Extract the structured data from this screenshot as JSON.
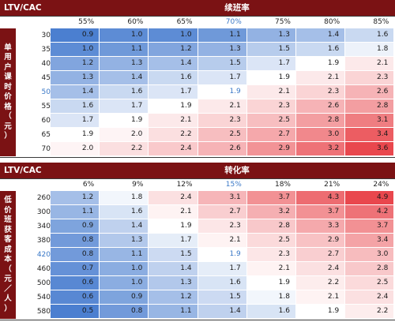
{
  "table1": {
    "corner": "LTV/CAC",
    "title": "续班率",
    "side_label": [
      "单",
      "用",
      "户",
      "课",
      "时",
      "价",
      "格",
      "（",
      "元",
      "）"
    ],
    "columns": [
      "55%",
      "60%",
      "65%",
      "70%",
      "75%",
      "80%",
      "85%"
    ],
    "highlight_col": 3,
    "rows": [
      "30",
      "35",
      "40",
      "45",
      "50",
      "55",
      "60",
      "65",
      "70"
    ],
    "highlight_row": 4,
    "values": [
      [
        "0.9",
        "1.0",
        "1.0",
        "1.1",
        "1.3",
        "1.4",
        "1.6"
      ],
      [
        "1.0",
        "1.1",
        "1.2",
        "1.3",
        "1.5",
        "1.6",
        "1.8"
      ],
      [
        "1.2",
        "1.3",
        "1.4",
        "1.5",
        "1.7",
        "1.9",
        "2.1"
      ],
      [
        "1.3",
        "1.4",
        "1.6",
        "1.7",
        "1.9",
        "2.1",
        "2.3"
      ],
      [
        "1.4",
        "1.6",
        "1.7",
        "1.9",
        "2.1",
        "2.3",
        "2.6"
      ],
      [
        "1.6",
        "1.7",
        "1.9",
        "2.1",
        "2.3",
        "2.6",
        "2.8"
      ],
      [
        "1.7",
        "1.9",
        "2.1",
        "2.3",
        "2.5",
        "2.8",
        "3.1"
      ],
      [
        "1.9",
        "2.0",
        "2.2",
        "2.5",
        "2.7",
        "3.0",
        "3.4"
      ],
      [
        "2.0",
        "2.2",
        "2.4",
        "2.6",
        "2.9",
        "3.2",
        "3.6"
      ]
    ]
  },
  "table2": {
    "corner": "LTV/CAC",
    "title": "转化率",
    "side_label": [
      "低",
      "价",
      "班",
      "获",
      "客",
      "成",
      "本",
      "（",
      "元",
      "／",
      "人",
      "）"
    ],
    "columns": [
      "6%",
      "9%",
      "12%",
      "15%",
      "18%",
      "21%",
      "24%"
    ],
    "highlight_col": 3,
    "rows": [
      "260",
      "300",
      "340",
      "380",
      "420",
      "460",
      "500",
      "540",
      "580"
    ],
    "highlight_row": 4,
    "values": [
      [
        "1.2",
        "1.8",
        "2.4",
        "3.1",
        "3.7",
        "4.3",
        "4.9"
      ],
      [
        "1.1",
        "1.6",
        "2.1",
        "2.7",
        "3.2",
        "3.7",
        "4.2"
      ],
      [
        "0.9",
        "1.4",
        "1.9",
        "2.3",
        "2.8",
        "3.3",
        "3.7"
      ],
      [
        "0.8",
        "1.3",
        "1.7",
        "2.1",
        "2.5",
        "2.9",
        "3.4"
      ],
      [
        "0.8",
        "1.1",
        "1.5",
        "1.9",
        "2.3",
        "2.7",
        "3.0"
      ],
      [
        "0.7",
        "1.0",
        "1.4",
        "1.7",
        "2.1",
        "2.4",
        "2.8"
      ],
      [
        "0.6",
        "1.0",
        "1.3",
        "1.6",
        "1.9",
        "2.2",
        "2.5"
      ],
      [
        "0.6",
        "0.9",
        "1.2",
        "1.5",
        "1.8",
        "2.1",
        "2.4"
      ],
      [
        "0.5",
        "0.8",
        "1.1",
        "1.4",
        "1.6",
        "1.9",
        "2.2"
      ]
    ]
  },
  "colors": {
    "header_bg": "#7b1214",
    "low": "#4b7fd0",
    "mid": "#ffffff",
    "high": "#e9474d",
    "highlight_text": "#3a78c7"
  }
}
